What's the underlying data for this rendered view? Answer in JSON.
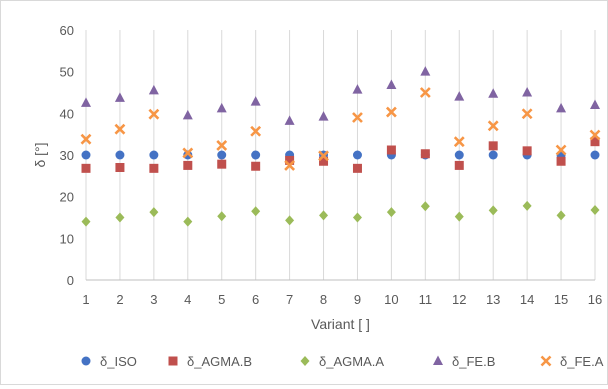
{
  "chart_data": {
    "type": "scatter",
    "title": "",
    "xlabel": "Variant [ ]",
    "ylabel": "δ [°]",
    "x": [
      1,
      2,
      3,
      4,
      5,
      6,
      7,
      8,
      9,
      10,
      11,
      12,
      13,
      14,
      15,
      16
    ],
    "xlim": [
      1,
      16
    ],
    "ylim": [
      0,
      60
    ],
    "yticks": [
      0,
      10,
      20,
      30,
      40,
      50,
      60
    ],
    "grid": "vertical",
    "legend_position": "bottom",
    "series": [
      {
        "name": "δ_ISO",
        "marker": "circle",
        "color": "#4472C4",
        "values": [
          30,
          30,
          30,
          30,
          30,
          30,
          30,
          30,
          30,
          30,
          30,
          30,
          30,
          30,
          30,
          30
        ]
      },
      {
        "name": "δ_AGMA.B",
        "marker": "square",
        "color": "#C0504D",
        "values": [
          26.8,
          27,
          26.8,
          27.5,
          27.8,
          27.3,
          28.7,
          28.5,
          26.8,
          31.2,
          30.3,
          27.5,
          32.2,
          31,
          28.5,
          33.2
        ]
      },
      {
        "name": "δ_AGMA.A",
        "marker": "diamond",
        "color": "#9BBB59",
        "values": [
          14,
          15,
          16.3,
          14,
          15.3,
          16.5,
          14.3,
          15.5,
          15,
          16.3,
          17.7,
          15.2,
          16.7,
          17.8,
          15.5,
          16.8
        ]
      },
      {
        "name": "δ_FE.B",
        "marker": "triangle",
        "color": "#8064A2",
        "values": [
          42.5,
          43.7,
          45.5,
          39.5,
          41.2,
          42.8,
          38.2,
          39.2,
          45.7,
          46.8,
          50,
          44,
          44.7,
          45,
          41.2,
          42
        ]
      },
      {
        "name": "δ_FE.A",
        "marker": "x",
        "color": "#F79646",
        "values": [
          33.8,
          36.2,
          39.8,
          30.5,
          32.3,
          35.7,
          27.5,
          29.8,
          39,
          40.3,
          45,
          33.2,
          37,
          39.9,
          31.2,
          34.8
        ]
      }
    ]
  }
}
